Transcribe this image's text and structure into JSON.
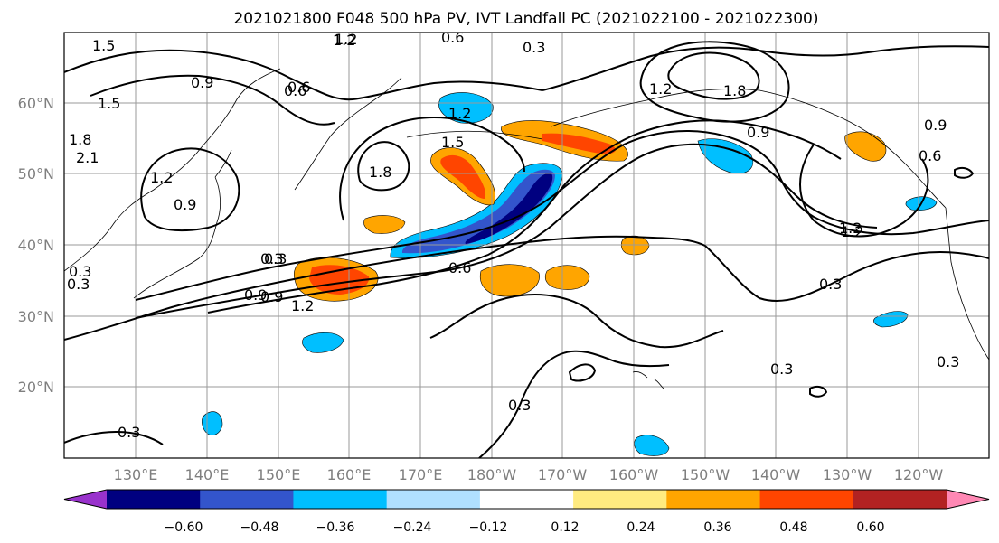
{
  "title": "2021021800 F048 500 hPa PV, IVT Landfall PC (2021022100 - 2021022300)",
  "lat_labels": [
    "60°N",
    "50°N",
    "40°N",
    "30°N",
    "20°N"
  ],
  "lon_labels": [
    "130°E",
    "140°E",
    "150°E",
    "160°E",
    "170°E",
    "180°W",
    "170°W",
    "160°W",
    "150°W",
    "140°W",
    "130°W",
    "120°W"
  ],
  "colorbar": {
    "ticks": [
      "−0.60",
      "−0.48",
      "−0.36",
      "−0.24",
      "−0.12",
      "0.12",
      "0.24",
      "0.36",
      "0.48",
      "0.60"
    ],
    "colors": [
      "#9932cc",
      "#000080",
      "#3355cc",
      "#00bfff",
      "#b0e0ff",
      "#ffffff",
      "#ffeb80",
      "#ffa500",
      "#ff4500",
      "#b22222",
      "#ff88b4"
    ]
  },
  "contour_labels": [
    "1.5",
    "1.2",
    "0.6",
    "0.3",
    "1.8",
    "0.9",
    "0.9",
    "0.6",
    "1.2",
    "1.2",
    "1.5",
    "1.8",
    "1.5",
    "1.2",
    "0.9",
    "2.1",
    "1.8",
    "1.2",
    "0.9",
    "0.6",
    "1.2",
    "0.3",
    "0.3",
    "0.9",
    "1.2",
    "0.6",
    "0.3",
    "0.3",
    "0.3",
    "0.3",
    "0.3",
    "0.3",
    "0.9",
    "0.6",
    "1.2",
    "0.3"
  ]
}
